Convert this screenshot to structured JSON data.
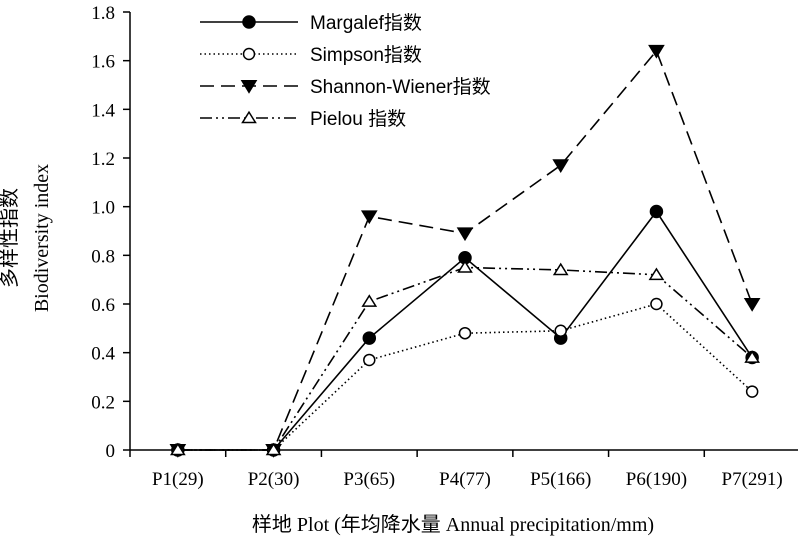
{
  "chart_data": {
    "type": "line",
    "categories": [
      "P1(29)",
      "P2(30)",
      "P3(65)",
      "P4(77)",
      "P5(166)",
      "P6(190)",
      "P7(291)"
    ],
    "xlabel": "样地 Plot (年均降水量  Annual precipitation/mm)",
    "ylabel_cn": "多样性指数",
    "ylabel_en": "Biodiversity index",
    "ylim": [
      0,
      1.8
    ],
    "yticks": [
      "0",
      "0.2",
      "0.4",
      "0.6",
      "0.8",
      "1.0",
      "1.2",
      "1.4",
      "1.6",
      "1.8"
    ],
    "grid": false,
    "legend_position": "top-left",
    "series": [
      {
        "name": "Margalef指数",
        "values": [
          0,
          0,
          0.46,
          0.79,
          0.46,
          0.98,
          0.38
        ],
        "line": "solid",
        "marker": "filled-circle"
      },
      {
        "name": "Simpson指数",
        "values": [
          0,
          0,
          0.37,
          0.48,
          0.49,
          0.6,
          0.24
        ],
        "line": "dotted",
        "marker": "open-circle"
      },
      {
        "name": "Shannon-Wiener指数",
        "values": [
          0,
          0,
          0.96,
          0.89,
          1.17,
          1.64,
          0.6
        ],
        "line": "dashed",
        "marker": "filled-triangle-down"
      },
      {
        "name": "Pielou 指数",
        "values": [
          0,
          0,
          0.61,
          0.75,
          0.74,
          0.72,
          0.38
        ],
        "line": "dash-dot-dot",
        "marker": "open-triangle-up"
      }
    ]
  }
}
